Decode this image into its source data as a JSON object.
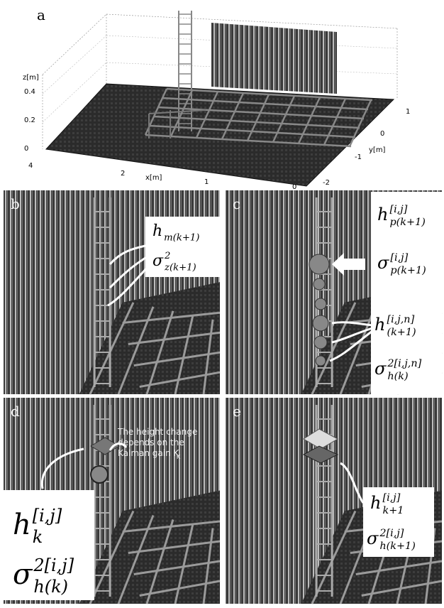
{
  "panel_a": {
    "label": "a",
    "z_label": "z[m]",
    "x_label": "x[m]",
    "y_label": "y[m]",
    "z_ticks": [
      "0.4",
      "0.2",
      "0"
    ],
    "x_ticks": [
      "4",
      "2",
      "1",
      "0"
    ],
    "y_ticks": [
      "1",
      "0",
      "-1",
      "-2"
    ]
  },
  "panel_b": {
    "label": "b",
    "annotations": [
      {
        "base": "h",
        "sub": "m(k+1)"
      },
      {
        "base": "σ",
        "sup": "2",
        "sub": "z(k+1)"
      }
    ]
  },
  "panel_c": {
    "label": "c",
    "annotations": [
      {
        "base": "h",
        "sup": "[i,j]",
        "sub": "p(k+1)"
      },
      {
        "base": "σ",
        "sup": "[i,j]",
        "sub": "p(k+1)"
      },
      {
        "base": "h",
        "sup": "[i,j,n]",
        "sub": "(k+1)"
      },
      {
        "base": "σ",
        "sup": "2[i,j,n]",
        "sub": "h(k)"
      }
    ]
  },
  "panel_d": {
    "label": "d",
    "note": {
      "lines": [
        "The height change",
        "depends on  the",
        "Kalman gain K"
      ],
      "sub": "K"
    },
    "annotations": [
      {
        "base": "h",
        "sup": "[i,j]",
        "sub": "k"
      },
      {
        "base": "σ",
        "sup": "2[i,j]",
        "sub": "h(k)"
      }
    ]
  },
  "panel_e": {
    "label": "e",
    "annotations": [
      {
        "base": "h",
        "sup": "[i,j]",
        "sub": "k+1"
      },
      {
        "base": "σ",
        "sup": "2[i,j]",
        "sub": "h(k+1)"
      }
    ]
  }
}
